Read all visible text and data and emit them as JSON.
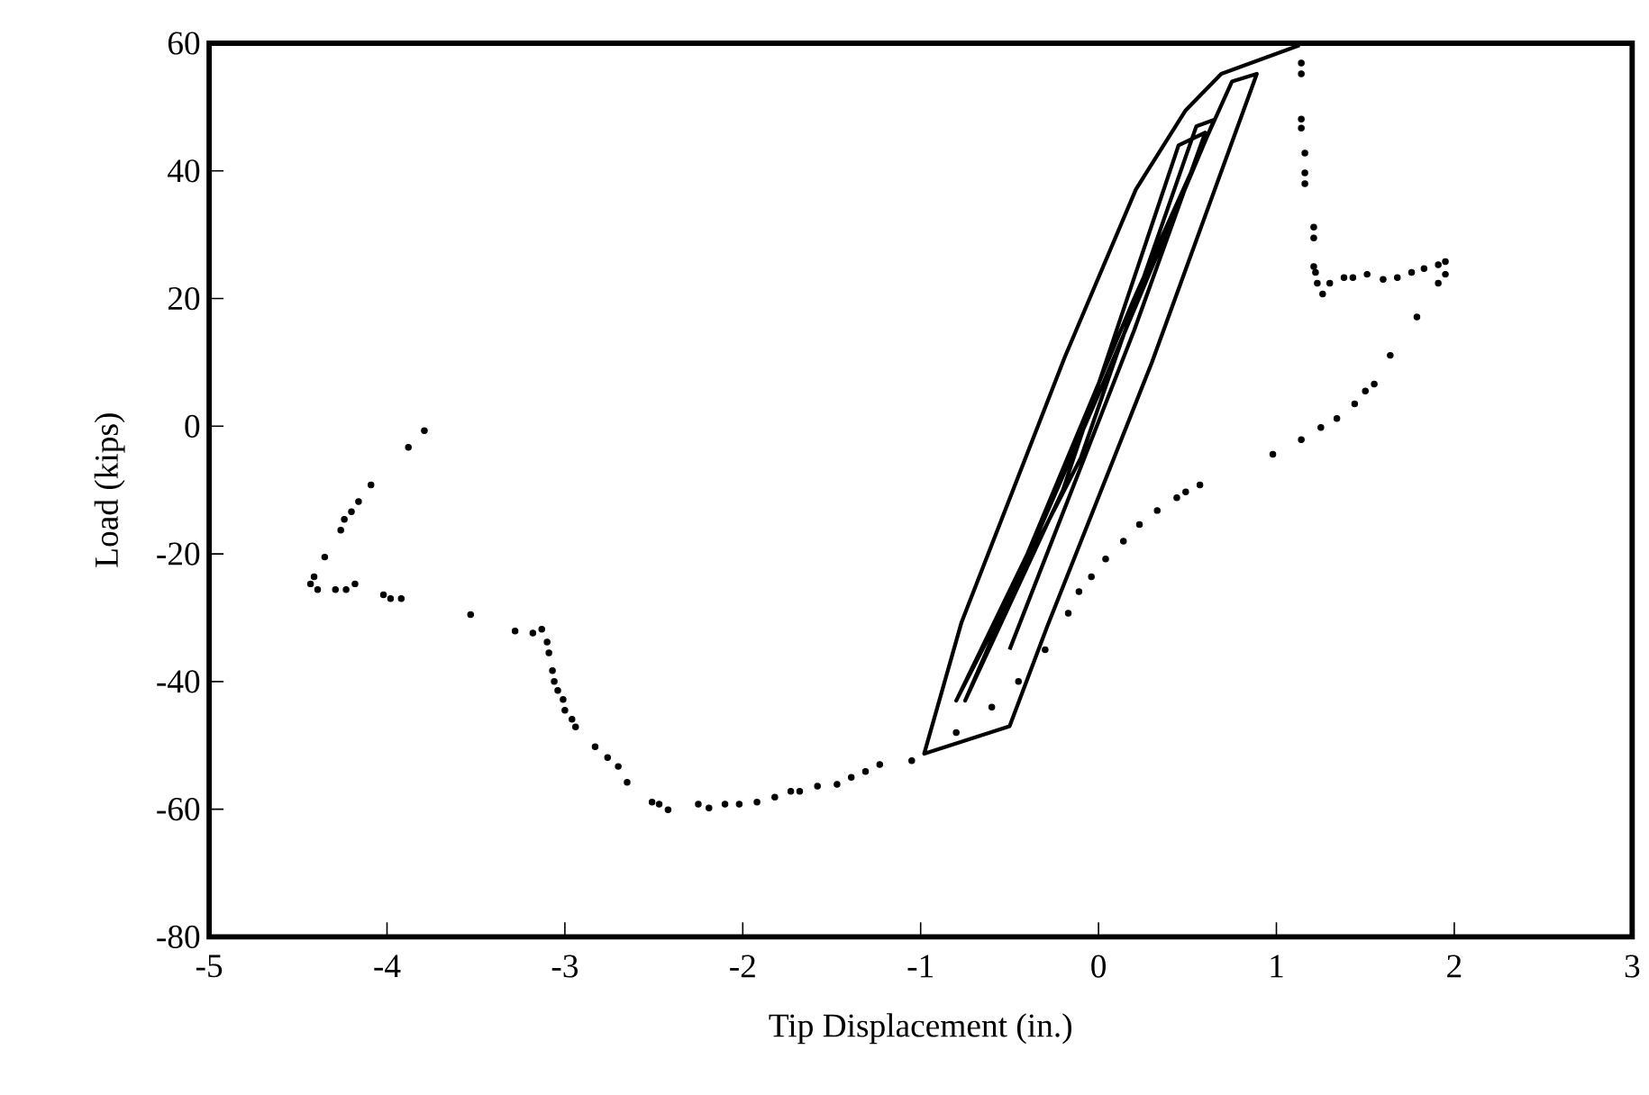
{
  "chart_data": {
    "type": "line",
    "xlabel": "Tip Displacement (in.)",
    "ylabel": "Load (kips)",
    "xlim": [
      -5,
      3
    ],
    "ylim": [
      -80,
      60
    ],
    "xticks": [
      -5,
      -4,
      -3,
      -2,
      -1,
      0,
      1,
      2,
      3
    ],
    "yticks": [
      -80,
      -60,
      -40,
      -20,
      0,
      20,
      40,
      60
    ],
    "series": [
      {
        "color": "#000000",
        "x": [
          -0.5,
          0.2,
          0.6,
          0.45,
          -0.2,
          -0.75,
          0,
          0.65,
          0.55,
          -0.1,
          -0.8,
          -0.4,
          0.2,
          0.75,
          0.89,
          0.3,
          -0.29,
          -0.5,
          -0.98,
          -0.77,
          -0.19,
          0.21,
          0.49,
          0.69,
          1.13
        ],
        "values": [
          -35,
          15,
          46,
          44,
          -10,
          -43,
          5,
          48,
          47,
          -5,
          -43,
          -20,
          20,
          54,
          55.2,
          10,
          -31.5,
          -47,
          -51.3,
          -30.7,
          10.8,
          37.1,
          49.5,
          55.2,
          59.7
        ]
      },
      {
        "type": "scatter",
        "color": "#000000",
        "x": [
          1.14,
          1.14,
          1.14,
          1.14,
          1.16,
          1.16,
          1.16,
          1.21,
          1.21,
          1.21,
          1.22,
          1.23,
          1.26,
          1.3,
          1.38,
          1.43,
          1.51,
          1.6,
          1.68,
          1.76,
          1.83,
          1.91,
          1.95,
          1.95,
          1.91,
          1.79,
          1.64,
          1.55,
          1.5,
          1.44,
          1.34,
          1.25,
          1.14,
          0.98,
          0.57,
          0.49,
          0.44,
          0.33,
          0.23,
          0.14,
          0.04,
          -0.04,
          -0.11,
          -0.17,
          -0.3,
          -0.45,
          -0.6,
          -0.8,
          -1.05,
          -1.23,
          -1.31,
          -1.39,
          -1.47,
          -1.58,
          -1.68,
          -1.73,
          -1.82,
          -1.92,
          -2.02,
          -2.1,
          -2.19,
          -2.25,
          -2.42,
          -2.47,
          -2.51,
          -2.65,
          -2.7,
          -2.76,
          -2.83,
          -2.94,
          -2.96,
          -3.0,
          -3.01,
          -3.04,
          -3.06,
          -3.07,
          -3.09,
          -3.1,
          -3.13,
          -3.18,
          -3.28,
          -3.53,
          -3.92,
          -3.98,
          -4.02,
          -4.18,
          -4.23,
          -4.29,
          -4.39,
          -4.43,
          -4.41,
          -4.35,
          -4.26,
          -4.24,
          -4.2,
          -4.16,
          -4.09,
          -3.88,
          -3.79
        ],
        "values": [
          56.9,
          55.2,
          48.1,
          46.7,
          42.8,
          39.7,
          38.0,
          31.2,
          29.5,
          25.0,
          24.1,
          22.4,
          20.7,
          22.4,
          23.3,
          23.3,
          23.8,
          23.0,
          23.3,
          24.1,
          24.7,
          25.3,
          25.8,
          23.8,
          22.4,
          17.1,
          11.1,
          6.6,
          5.5,
          3.5,
          1.2,
          -0.2,
          -2.1,
          -4.4,
          -9.2,
          -10.3,
          -11.2,
          -13.2,
          -15.4,
          -18.0,
          -20.8,
          -23.6,
          -25.9,
          -29.3,
          -35,
          -40,
          -44,
          -48,
          -52.4,
          -53.0,
          -54.1,
          -55.0,
          -56.1,
          -56.4,
          -57.2,
          -57.2,
          -58.1,
          -58.9,
          -59.2,
          -59.2,
          -59.8,
          -59.2,
          -60.1,
          -59.2,
          -58.9,
          -55.8,
          -53.3,
          -51.9,
          -50.2,
          -47.1,
          -45.9,
          -44.5,
          -42.8,
          -41.4,
          -40.0,
          -38.3,
          -35.5,
          -33.8,
          -31.8,
          -32.4,
          -32.1,
          -29.5,
          -27.0,
          -27.0,
          -26.4,
          -24.7,
          -25.6,
          -25.6,
          -25.6,
          -24.7,
          -23.6,
          -20.5,
          -16.3,
          -14.6,
          -13.4,
          -11.8,
          -9.2,
          -3.3,
          -0.7
        ]
      }
    ]
  }
}
